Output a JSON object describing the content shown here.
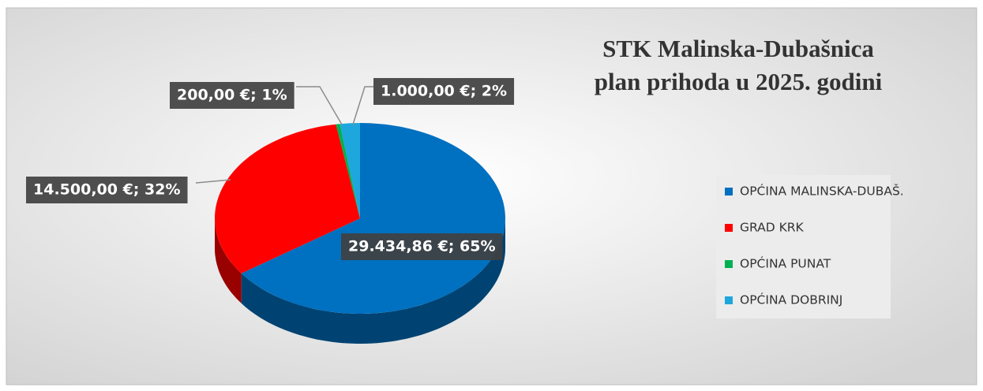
{
  "chart_data": {
    "type": "pie3d",
    "title": [
      "STK Malinska-Dubašnica",
      "plan prihoda  u 2025. godini"
    ],
    "categories": [
      "OPĆINA MALINSKA-DUBAŠ.",
      "GRAD KRK",
      "OPĆINA PUNAT",
      "OPĆINA DOBRINJ"
    ],
    "values": [
      29434.86,
      14500,
      200,
      1000
    ],
    "value_labels": [
      "29.434,86 €; 65%",
      "14.500,00 €; 32%",
      "200,00 €; 1%",
      "1.000,00 €; 2%"
    ],
    "colors": [
      "#0070c0",
      "#ff0000",
      "#00b050",
      "#1ea7dc"
    ],
    "legend": "right"
  }
}
